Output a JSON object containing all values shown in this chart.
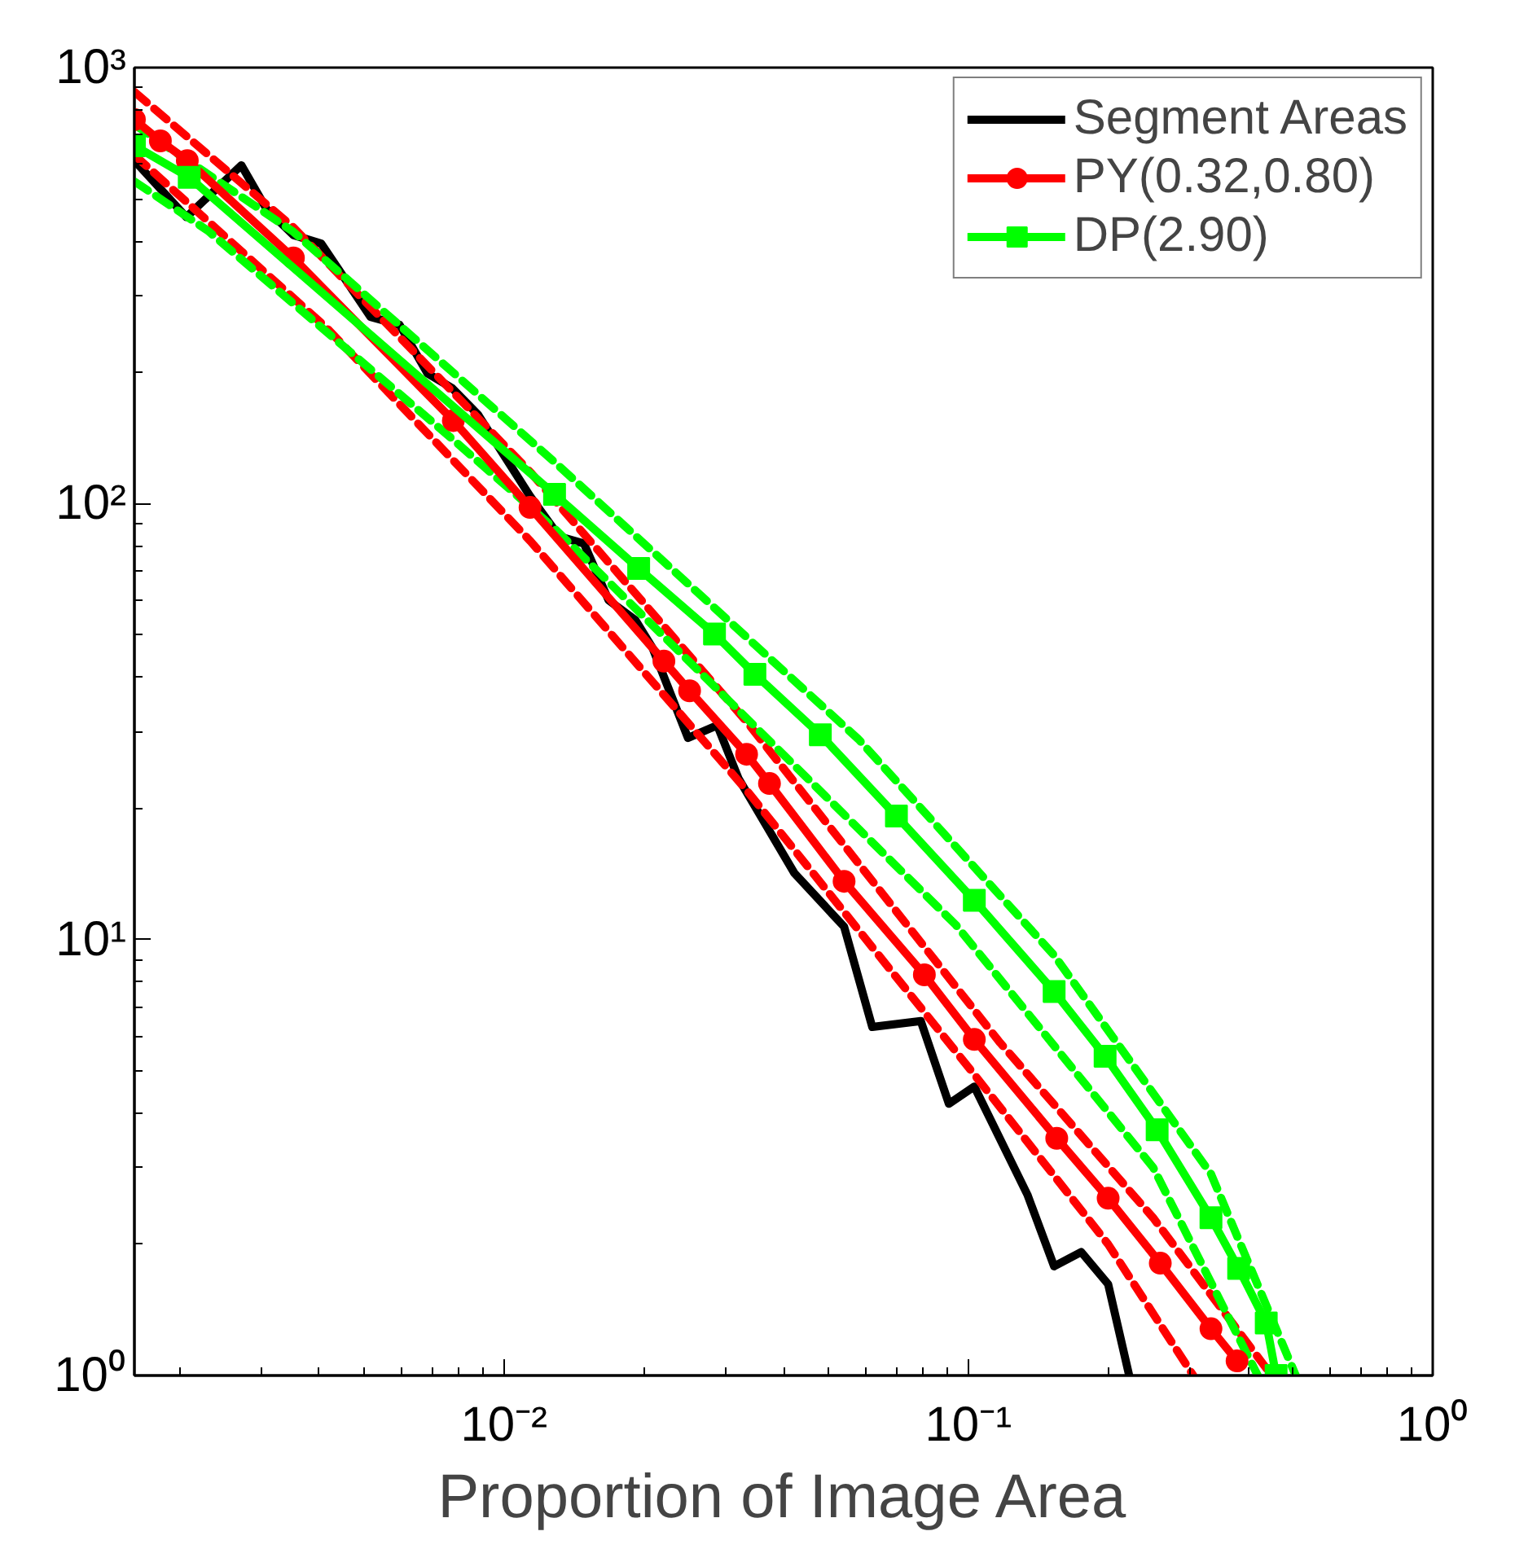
{
  "chart_data": {
    "type": "line",
    "xlabel": "Proportion of Image Area",
    "log": "xy",
    "grid": false,
    "legend": "top right",
    "xlim": [
      0.0016,
      1
    ],
    "ylim": [
      1,
      1000
    ],
    "xticks": [
      {
        "value": 0.01,
        "label": "10⁻²"
      },
      {
        "value": 0.1,
        "label": "10⁻¹"
      },
      {
        "value": 1,
        "label": "10⁰"
      }
    ],
    "yticks": [
      {
        "value": 1,
        "label": "10⁰"
      },
      {
        "value": 10,
        "label": "10¹"
      },
      {
        "value": 100,
        "label": "10²"
      },
      {
        "value": 1000,
        "label": "10³"
      }
    ],
    "series": [
      {
        "name": "Segment Areas",
        "color": "#000000",
        "marker": "none",
        "line_style": "solid",
        "x": [
          0.0016,
          0.00207,
          0.00272,
          0.00308,
          0.00352,
          0.00404,
          0.00516,
          0.00596,
          0.00684,
          0.00773,
          0.00879,
          0.01138,
          0.01316,
          0.01486,
          0.0168,
          0.0192,
          0.0209,
          0.0249,
          0.0288,
          0.032,
          0.0422,
          0.054,
          0.0621,
          0.079,
          0.0908,
          0.103,
          0.134,
          0.153,
          0.175,
          0.2,
          0.222
        ],
        "values": [
          612,
          454,
          597,
          474,
          413,
          395,
          268,
          257,
          199,
          184,
          160,
          104,
          84,
          81,
          60,
          54,
          46.6,
          29,
          31,
          23.4,
          14.2,
          10.7,
          6.3,
          6.5,
          4.2,
          4.6,
          2.6,
          1.78,
          1.92,
          1.62,
          1.0
        ]
      },
      {
        "color": "#ff0000",
        "marker": "none",
        "line_style": "dashed",
        "x": [
          0.0016,
          0.00352,
          0.0114,
          0.0333,
          0.117,
          0.25,
          0.45
        ],
        "values": [
          880,
          430,
          118,
          31.6,
          5.8,
          2.3,
          1.0
        ]
      },
      {
        "color": "#ff0000",
        "marker": "none",
        "line_style": "dashed",
        "x": [
          0.0016,
          0.00415,
          0.0114,
          0.0333,
          0.103,
          0.2,
          0.305
        ],
        "values": [
          630,
          253,
          82,
          22,
          4.9,
          2.0,
          1.0
        ]
      },
      {
        "color": "#00ff00",
        "marker": "none",
        "line_style": "dashed",
        "x": [
          0.0016,
          0.00352,
          0.0128,
          0.058,
          0.153,
          0.333,
          0.507
        ],
        "values": [
          740,
          420,
          125,
          28.8,
          9.2,
          2.9,
          1.0
        ]
      },
      {
        "color": "#00ff00",
        "marker": "none",
        "line_style": "dashed",
        "x": [
          0.0016,
          0.0023,
          0.00778,
          0.0128,
          0.094,
          0.25,
          0.42
        ],
        "values": [
          548,
          423,
          140,
          88,
          10.8,
          3.0,
          1.0
        ]
      },
      {
        "name": "PY(0.32,0.80)",
        "color": "#ff0000",
        "marker": "circle",
        "line_style": "solid",
        "x": [
          0.0016,
          0.00182,
          0.00208,
          0.00352,
          0.00778,
          0.01138,
          0.0221,
          0.0251,
          0.0333,
          0.0373,
          0.054,
          0.0804,
          0.103,
          0.155,
          0.2,
          0.259,
          0.333,
          0.379
        ],
        "values": [
          760,
          679,
          612,
          366,
          155,
          98,
          43.5,
          37.2,
          26.6,
          22.8,
          13.6,
          8.3,
          5.9,
          3.5,
          2.55,
          1.81,
          1.28,
          1.08
        ]
      },
      {
        "name": "DP(2.90)",
        "color": "#00ff00",
        "marker": "square",
        "line_style": "solid",
        "x": [
          0.0016,
          0.0021,
          0.01285,
          0.0195,
          0.0284,
          0.0347,
          0.048,
          0.07,
          0.103,
          0.153,
          0.197,
          0.255,
          0.333,
          0.382,
          0.438,
          0.46
        ],
        "values": [
          662,
          560,
          105,
          71,
          50.2,
          40.6,
          29.5,
          19.2,
          12.3,
          7.6,
          5.4,
          3.66,
          2.3,
          1.76,
          1.32,
          1.0
        ]
      }
    ]
  }
}
